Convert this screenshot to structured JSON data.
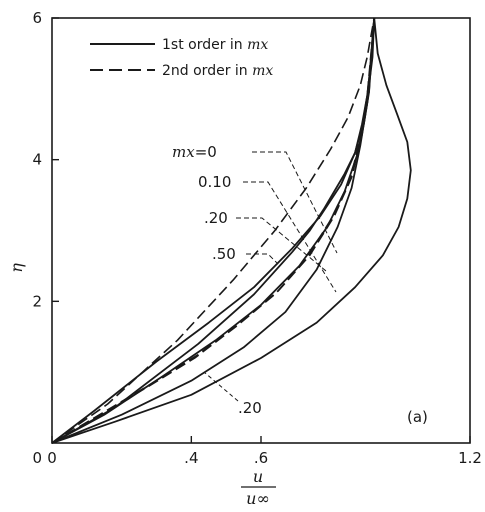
{
  "chart_data": {
    "type": "line",
    "xlim": [
      0,
      1.2
    ],
    "ylim": [
      0,
      6
    ],
    "xticks": [
      0,
      0.4,
      0.6,
      1.2
    ],
    "xtick_labels": [
      "0",
      ".4",
      ".6",
      "1.2"
    ],
    "yticks": [
      2,
      4,
      6
    ],
    "ytick_labels": [
      "2",
      "4",
      "6"
    ],
    "ylabel": "η",
    "xlabel_num": "u",
    "xlabel_den": "u∞",
    "panel_label": "(a)",
    "legend": [
      {
        "label_prefix": "1st order in ",
        "label_var": "mx",
        "style": "solid"
      },
      {
        "label_prefix": "2nd order in ",
        "label_var": "mx",
        "style": "dashed"
      }
    ],
    "annotations": {
      "mx_var": "mx",
      "mx_zero": "=0",
      "v010": "0.10",
      "v20": ".20",
      "v50": ".50",
      "v20_low": ".20"
    },
    "series": [
      {
        "style": "solid",
        "x": [
          0,
          0.18,
          0.42,
          0.58,
          0.69,
          0.74,
          0.78,
          0.81,
          0.84,
          0.87,
          0.89,
          0.9,
          0.91,
          0.92,
          0.925
        ],
        "y": [
          0,
          0.5,
          1.4,
          2.1,
          2.7,
          3.0,
          3.3,
          3.55,
          3.8,
          4.1,
          4.45,
          4.75,
          5.05,
          5.45,
          6.0
        ]
      },
      {
        "style": "solid",
        "x": [
          0,
          0.12,
          0.3,
          0.45,
          0.58,
          0.69,
          0.77,
          0.83,
          0.87,
          0.89,
          0.905,
          0.915,
          0.925
        ],
        "y": [
          0,
          0.45,
          1.15,
          1.7,
          2.2,
          2.75,
          3.2,
          3.65,
          4.1,
          4.5,
          4.9,
          5.35,
          6.0
        ]
      },
      {
        "style": "solid",
        "x": [
          0,
          0.15,
          0.32,
          0.47,
          0.6,
          0.71,
          0.79,
          0.84,
          0.875,
          0.895,
          0.91,
          0.925
        ],
        "y": [
          0,
          0.4,
          0.95,
          1.45,
          1.95,
          2.5,
          3.05,
          3.55,
          4.05,
          4.5,
          4.95,
          6.0
        ]
      },
      {
        "style": "solid",
        "x": [
          0,
          0.2,
          0.4,
          0.55,
          0.67,
          0.76,
          0.82,
          0.86,
          0.885,
          0.905,
          0.925
        ],
        "y": [
          0,
          0.4,
          0.88,
          1.35,
          1.85,
          2.45,
          3.05,
          3.6,
          4.2,
          4.8,
          6.0
        ]
      },
      {
        "style": "solid",
        "x": [
          0,
          0.18,
          0.4,
          0.6,
          0.76,
          0.87,
          0.95,
          0.995,
          1.02,
          1.03,
          1.02,
          0.99,
          0.96,
          0.935,
          0.925
        ],
        "y": [
          0,
          0.3,
          0.68,
          1.2,
          1.7,
          2.2,
          2.65,
          3.05,
          3.45,
          3.85,
          4.25,
          4.65,
          5.05,
          5.5,
          6.0
        ]
      },
      {
        "style": "dashed",
        "x": [
          0,
          0.16,
          0.36,
          0.52,
          0.64,
          0.73,
          0.8,
          0.85,
          0.885,
          0.905,
          0.925
        ],
        "y": [
          0,
          0.55,
          1.45,
          2.3,
          3.0,
          3.6,
          4.15,
          4.6,
          5.05,
          5.45,
          6.0
        ]
      },
      {
        "style": "dashed",
        "x": [
          0,
          0.12,
          0.28,
          0.42,
          0.54,
          0.65,
          0.74,
          0.81,
          0.86,
          0.89,
          0.91,
          0.925
        ],
        "y": [
          0,
          0.35,
          0.82,
          1.25,
          1.7,
          2.15,
          2.65,
          3.2,
          3.75,
          4.35,
          4.95,
          6.0
        ]
      },
      {
        "style": "dashed",
        "x": [
          0,
          0.11,
          0.27,
          0.41,
          0.53,
          0.64,
          0.73,
          0.8,
          0.855,
          0.885,
          0.905,
          0.925
        ],
        "y": [
          0,
          0.32,
          0.78,
          1.2,
          1.65,
          2.1,
          2.6,
          3.15,
          3.7,
          4.3,
          4.9,
          6.0
        ]
      }
    ]
  }
}
